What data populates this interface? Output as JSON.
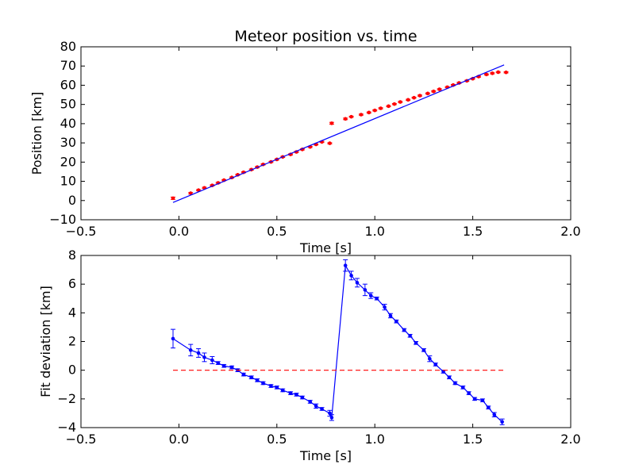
{
  "chart_data": [
    {
      "type": "scatter",
      "title": "Meteor position vs. time",
      "xlabel": "Time [s]",
      "ylabel": "Position [km]",
      "xlim": [
        -0.5,
        2.0
      ],
      "ylim": [
        -10,
        80
      ],
      "xticks": [
        "−0.5",
        "0.0",
        "0.5",
        "1.0",
        "1.5",
        "2.0"
      ],
      "yticks": [
        "−10",
        "0",
        "10",
        "20",
        "30",
        "40",
        "50",
        "60",
        "70",
        "80"
      ],
      "grid": false,
      "colors": {
        "points": "#ff0000",
        "fit": "#0000ff"
      },
      "series": [
        {
          "kind": "points_with_errorbars",
          "x": [
            -0.03,
            0.06,
            0.1,
            0.13,
            0.17,
            0.2,
            0.23,
            0.27,
            0.3,
            0.33,
            0.37,
            0.4,
            0.43,
            0.47,
            0.5,
            0.53,
            0.57,
            0.6,
            0.63,
            0.67,
            0.7,
            0.73,
            0.77,
            0.78,
            0.85,
            0.88,
            0.93,
            0.97,
            1.0,
            1.03,
            1.07,
            1.1,
            1.13,
            1.17,
            1.2,
            1.23,
            1.27,
            1.3,
            1.33,
            1.37,
            1.4,
            1.43,
            1.47,
            1.5,
            1.53,
            1.57,
            1.6,
            1.63,
            1.67
          ],
          "y": [
            1.2,
            3.8,
            5.4,
            6.6,
            7.9,
            9.2,
            10.6,
            12.0,
            13.4,
            14.7,
            16.1,
            17.4,
            18.8,
            20.1,
            21.4,
            22.7,
            24.0,
            25.3,
            26.6,
            27.9,
            29.2,
            30.5,
            29.8,
            40.2,
            42.5,
            43.6,
            44.7,
            45.8,
            46.9,
            48.0,
            49.1,
            50.2,
            51.3,
            52.4,
            53.5,
            54.6,
            55.7,
            56.8,
            57.9,
            59.0,
            60.1,
            61.2,
            62.3,
            63.4,
            64.5,
            65.6,
            66.2,
            66.8,
            66.7
          ],
          "err": [
            0.6,
            0.4,
            0.3,
            0.3,
            0.3,
            0.3,
            0.3,
            0.3,
            0.3,
            0.3,
            0.3,
            0.3,
            0.3,
            0.3,
            0.3,
            0.3,
            0.3,
            0.3,
            0.3,
            0.3,
            0.3,
            0.3,
            0.3,
            0.5,
            0.4,
            0.3,
            0.3,
            0.3,
            0.3,
            0.3,
            0.3,
            0.3,
            0.3,
            0.3,
            0.3,
            0.3,
            0.3,
            0.3,
            0.3,
            0.3,
            0.3,
            0.3,
            0.3,
            0.3,
            0.3,
            0.3,
            0.3,
            0.3,
            0.3
          ]
        },
        {
          "kind": "line",
          "x": [
            -0.03,
            1.66
          ],
          "y": [
            -1.0,
            70.6
          ]
        }
      ]
    },
    {
      "type": "line",
      "title": "",
      "xlabel": "Time [s]",
      "ylabel": "Fit deviation [km]",
      "xlim": [
        -0.5,
        2.0
      ],
      "ylim": [
        -4,
        8
      ],
      "xticks": [
        "−0.5",
        "0.0",
        "0.5",
        "1.0",
        "1.5",
        "2.0"
      ],
      "yticks": [
        "−4",
        "−2",
        "0",
        "2",
        "4",
        "6",
        "8"
      ],
      "grid": false,
      "colors": {
        "deviation": "#0000ff",
        "zero": "#ff0000"
      },
      "series": [
        {
          "kind": "line_with_errorbars",
          "x": [
            -0.03,
            0.06,
            0.1,
            0.13,
            0.17,
            0.2,
            0.23,
            0.27,
            0.3,
            0.33,
            0.37,
            0.4,
            0.43,
            0.47,
            0.5,
            0.53,
            0.57,
            0.6,
            0.63,
            0.67,
            0.7,
            0.73,
            0.77,
            0.78,
            0.85,
            0.88,
            0.91,
            0.95,
            0.98,
            1.01,
            1.05,
            1.08,
            1.11,
            1.15,
            1.18,
            1.21,
            1.25,
            1.28,
            1.31,
            1.35,
            1.38,
            1.41,
            1.45,
            1.48,
            1.51,
            1.55,
            1.58,
            1.61,
            1.65
          ],
          "y": [
            2.2,
            1.4,
            1.2,
            0.9,
            0.7,
            0.5,
            0.3,
            0.2,
            0.0,
            -0.3,
            -0.5,
            -0.7,
            -0.9,
            -1.1,
            -1.2,
            -1.4,
            -1.6,
            -1.7,
            -1.9,
            -2.2,
            -2.5,
            -2.7,
            -3.0,
            -3.3,
            7.3,
            6.6,
            6.1,
            5.6,
            5.2,
            5.0,
            4.4,
            3.8,
            3.4,
            2.8,
            2.4,
            1.9,
            1.4,
            0.8,
            0.4,
            -0.1,
            -0.5,
            -0.9,
            -1.2,
            -1.6,
            -2.0,
            -2.1,
            -2.6,
            -3.1,
            -3.6
          ],
          "err": [
            0.65,
            0.4,
            0.3,
            0.3,
            0.25,
            0.1,
            0.1,
            0.1,
            0.1,
            0.1,
            0.1,
            0.1,
            0.1,
            0.1,
            0.1,
            0.1,
            0.1,
            0.1,
            0.1,
            0.1,
            0.15,
            0.1,
            0.2,
            0.2,
            0.4,
            0.3,
            0.3,
            0.4,
            0.2,
            0.1,
            0.2,
            0.15,
            0.1,
            0.1,
            0.1,
            0.1,
            0.1,
            0.2,
            0.1,
            0.1,
            0.1,
            0.1,
            0.1,
            0.1,
            0.1,
            0.1,
            0.1,
            0.15,
            0.2
          ]
        },
        {
          "kind": "dashed_line",
          "x": [
            -0.03,
            1.66
          ],
          "y": [
            0,
            0
          ]
        }
      ]
    }
  ]
}
